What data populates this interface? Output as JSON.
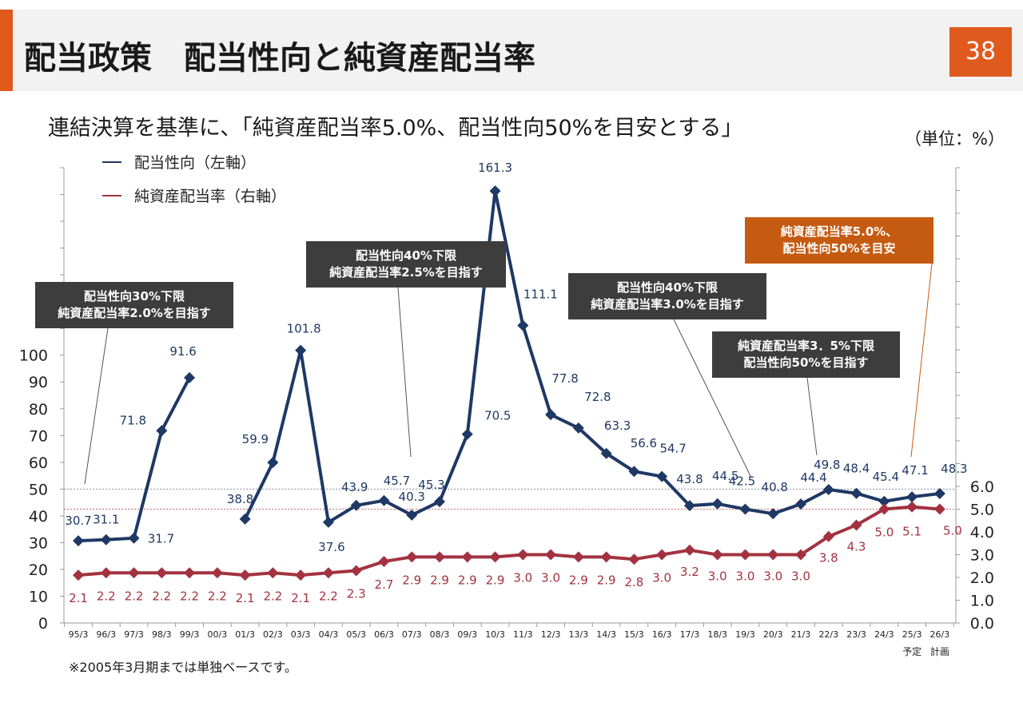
{
  "header": {
    "title": "配当政策　配当性向と純資産配当率",
    "page_number": "38"
  },
  "subtitle": "連結決算を基準に、「純資産配当率5.0%、配当性向50%を目安とする」",
  "unit": "（単位：%）",
  "footnote": "※2005年3月期までは単独ベースです。",
  "colors": {
    "accent": "#e05a1e",
    "payout": "#1f3864",
    "doe": "#a33240",
    "callout_dark": "#3d3d3d",
    "callout_orange": "#c55a11"
  },
  "chart_data": {
    "type": "line",
    "categories": [
      "95/3",
      "96/3",
      "97/3",
      "98/3",
      "99/3",
      "00/3",
      "01/3",
      "02/3",
      "03/3",
      "04/3",
      "05/3",
      "06/3",
      "07/3",
      "08/3",
      "09/3",
      "10/3",
      "11/3",
      "12/3",
      "13/3",
      "14/3",
      "15/3",
      "16/3",
      "17/3",
      "18/3",
      "19/3",
      "20/3",
      "21/3",
      "22/3",
      "23/3",
      "24/3",
      "25/3",
      "26/3"
    ],
    "x_sublabels": {
      "25/3": "予定",
      "26/3": "計画"
    },
    "left_axis": {
      "ticks": [
        "0",
        "10",
        "20",
        "30",
        "40",
        "50",
        "60",
        "70",
        "80",
        "90",
        "100"
      ],
      "min": 0,
      "max": 170
    },
    "right_axis": {
      "ticks": [
        "0.0",
        "1.0",
        "2.0",
        "3.0",
        "4.0",
        "5.0",
        "6.0"
      ],
      "min": 0,
      "max": 20
    },
    "series": [
      {
        "name": "配当性向（左軸）",
        "axis": "left",
        "values": [
          30.7,
          31.1,
          31.7,
          71.8,
          91.6,
          null,
          38.8,
          59.9,
          101.8,
          37.6,
          43.9,
          45.7,
          40.3,
          45.3,
          70.5,
          161.3,
          111.1,
          77.8,
          72.8,
          63.3,
          56.6,
          54.7,
          43.8,
          44.5,
          42.5,
          40.8,
          44.4,
          49.8,
          48.4,
          45.4,
          47.1,
          48.3
        ],
        "labels": [
          "30.7",
          "31.1",
          "31.7",
          "71.8",
          "91.6",
          "",
          "38.8",
          "59.9",
          "101.8",
          "37.6",
          "43.9",
          "45.7",
          "40.3",
          "45.3",
          "70.5",
          "161.3",
          "111.1",
          "77.8",
          "72.8",
          "63.3",
          "56.6",
          "54.7",
          "43.8",
          "44.5",
          "42.5",
          "40.8",
          "44.4",
          "49.8",
          "48.4",
          "45.4",
          "47.1",
          "48.3"
        ]
      },
      {
        "name": "純資産配当率（右軸）",
        "axis": "right",
        "values": [
          2.1,
          2.2,
          2.2,
          2.2,
          2.2,
          2.2,
          2.1,
          2.2,
          2.1,
          2.2,
          2.3,
          2.7,
          2.9,
          2.9,
          2.9,
          2.9,
          3.0,
          3.0,
          2.9,
          2.9,
          2.8,
          3.0,
          3.2,
          3.0,
          3.0,
          3.0,
          3.0,
          3.8,
          4.3,
          5.0,
          5.1,
          5.0
        ],
        "labels": [
          "2.1",
          "2.2",
          "2.2",
          "2.2",
          "2.2",
          "2.2",
          "2.1",
          "2.2",
          "2.1",
          "2.2",
          "2.3",
          "2.7",
          "2.9",
          "2.9",
          "2.9",
          "2.9",
          "3.0",
          "3.0",
          "2.9",
          "2.9",
          "2.8",
          "3.0",
          "3.2",
          "3.0",
          "3.0",
          "3.0",
          "3.0",
          "3.8",
          "4.3",
          "5.0",
          "5.1",
          "5.0"
        ]
      }
    ],
    "reference_lines": [
      {
        "axis": "left",
        "value": 50
      },
      {
        "axis": "right",
        "value": 5.0
      }
    ],
    "legend": {
      "placement": "top-left",
      "items": [
        "配当性向（左軸）",
        "純資産配当率（右軸）"
      ]
    },
    "annotations": [
      {
        "lines": [
          "配当性向30%下限",
          "純資産配当率2.0%を目指す"
        ],
        "style": "dark",
        "target": "95/3"
      },
      {
        "lines": [
          "配当性向40%下限",
          "純資産配当率2.5%を目指す"
        ],
        "style": "dark",
        "target": "07/3"
      },
      {
        "lines": [
          "配当性向40%下限",
          "純資産配当率3.0%を目指す"
        ],
        "style": "dark",
        "target": "18/3"
      },
      {
        "lines": [
          "純資産配当率3．5%下限",
          "配当性向50%を目指す"
        ],
        "style": "dark",
        "target": "21/3"
      },
      {
        "lines": [
          "純資産配当率5.0%、",
          "配当性向50%を目安"
        ],
        "style": "orange",
        "target": "24/3"
      }
    ]
  }
}
